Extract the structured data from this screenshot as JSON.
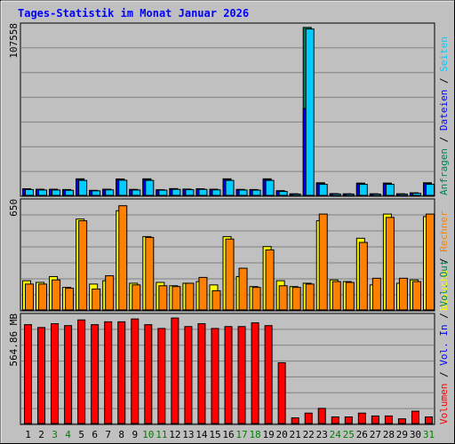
{
  "chart_data": {
    "type": "bar",
    "title": "Tages-Statistik im Monat Januar 2026",
    "categories": [
      "1",
      "2",
      "3",
      "4",
      "5",
      "6",
      "7",
      "8",
      "9",
      "10",
      "11",
      "12",
      "13",
      "14",
      "15",
      "16",
      "17",
      "18",
      "19",
      "20",
      "21",
      "22",
      "23",
      "24",
      "25",
      "26",
      "27",
      "28",
      "29",
      "30",
      "31"
    ],
    "weekend_days": [
      "3",
      "4",
      "10",
      "11",
      "17",
      "18",
      "24",
      "25",
      "31"
    ],
    "colors": {
      "background": "#c0c0c0",
      "title": "#0000ff",
      "weekend_label": "#008000",
      "weekday_label": "#000000",
      "hits": "#00805c",
      "files": "#0000ff",
      "pages": "#00ccff",
      "visits": "#ffff00",
      "sites": "#ff8000",
      "volume": "#ff0000",
      "vol_in": "#0000ff",
      "vol_out": "#00805c"
    },
    "panels": [
      {
        "id": "top",
        "scale_label": "107558",
        "ymax": 107558,
        "series": [
          {
            "name": "Anfragen",
            "key": "hits",
            "values": [
              4200,
              3900,
              3900,
              3700,
              10500,
              3200,
              3900,
              10400,
              3800,
              10500,
              3600,
              4300,
              4000,
              4200,
              3900,
              10500,
              3800,
              3700,
              10500,
              3000,
              1000,
              106500,
              8000,
              1100,
              1000,
              7800,
              1000,
              7800,
              1000,
              1600,
              8000
            ]
          },
          {
            "name": "Dateien",
            "key": "files",
            "values": [
              4000,
              3700,
              3700,
              3500,
              10100,
              3000,
              3700,
              10000,
              3600,
              10000,
              3400,
              4000,
              3800,
              4000,
              3700,
              10000,
              3600,
              3500,
              10000,
              2800,
              900,
              55000,
              7600,
              1000,
              900,
              7400,
              900,
              7400,
              900,
              1500,
              7600
            ]
          },
          {
            "name": "Seiten",
            "key": "pages",
            "values": [
              3700,
              3400,
              3400,
              3200,
              9500,
              2900,
              3500,
              9600,
              3400,
              9500,
              3300,
              3800,
              3600,
              3800,
              3500,
              9500,
              3400,
              3300,
              9500,
              2500,
              800,
              105500,
              7000,
              900,
              800,
              7000,
              800,
              7000,
              800,
              1300,
              7000
            ]
          }
        ]
      },
      {
        "id": "middle",
        "scale_label": "650",
        "ymax": 650,
        "series": [
          {
            "name": "Besuche",
            "key": "visits",
            "values": [
              175,
              165,
              200,
              135,
              545,
              155,
              175,
              595,
              160,
              440,
              165,
              145,
              160,
              170,
              150,
              440,
              200,
              140,
              380,
              175,
              140,
              160,
              535,
              180,
              170,
              430,
              150,
              575,
              160,
              180,
              560
            ]
          },
          {
            "name": "Rechner",
            "key": "sites",
            "values": [
              155,
              155,
              180,
              130,
              535,
              125,
              205,
              625,
              150,
              435,
              145,
              140,
              160,
              195,
              115,
              425,
              250,
              135,
              360,
              145,
              135,
              155,
              575,
              170,
              165,
              405,
              190,
              555,
              190,
              170,
              575
            ]
          }
        ]
      },
      {
        "id": "bottom",
        "scale_label": "564.86 MB",
        "ymax": 564.86,
        "series": [
          {
            "name": "Volumen",
            "key": "volume",
            "values": [
              520,
              505,
              525,
              515,
              545,
              520,
              535,
              535,
              550,
              520,
              500,
              555,
              510,
              525,
              500,
              510,
              510,
              530,
              515,
              320,
              30,
              55,
              80,
              35,
              35,
              55,
              40,
              40,
              25,
              65,
              35
            ]
          }
        ]
      }
    ],
    "right_labels": {
      "top": [
        {
          "text": "Anfragen",
          "key": "hits"
        },
        {
          "text": "Dateien",
          "key": "files"
        },
        {
          "text": "Seiten",
          "key": "pages"
        }
      ],
      "middle": [
        {
          "text": "Besuche",
          "key": "visits"
        },
        {
          "text": "Rechner",
          "key": "sites"
        }
      ],
      "bottom": [
        {
          "text": "Volumen",
          "key": "volume"
        },
        {
          "text": "Vol. In",
          "key": "vol_in"
        },
        {
          "text": "Vol. Out",
          "key": "vol_out"
        }
      ]
    },
    "grid": true,
    "separator": "/"
  }
}
